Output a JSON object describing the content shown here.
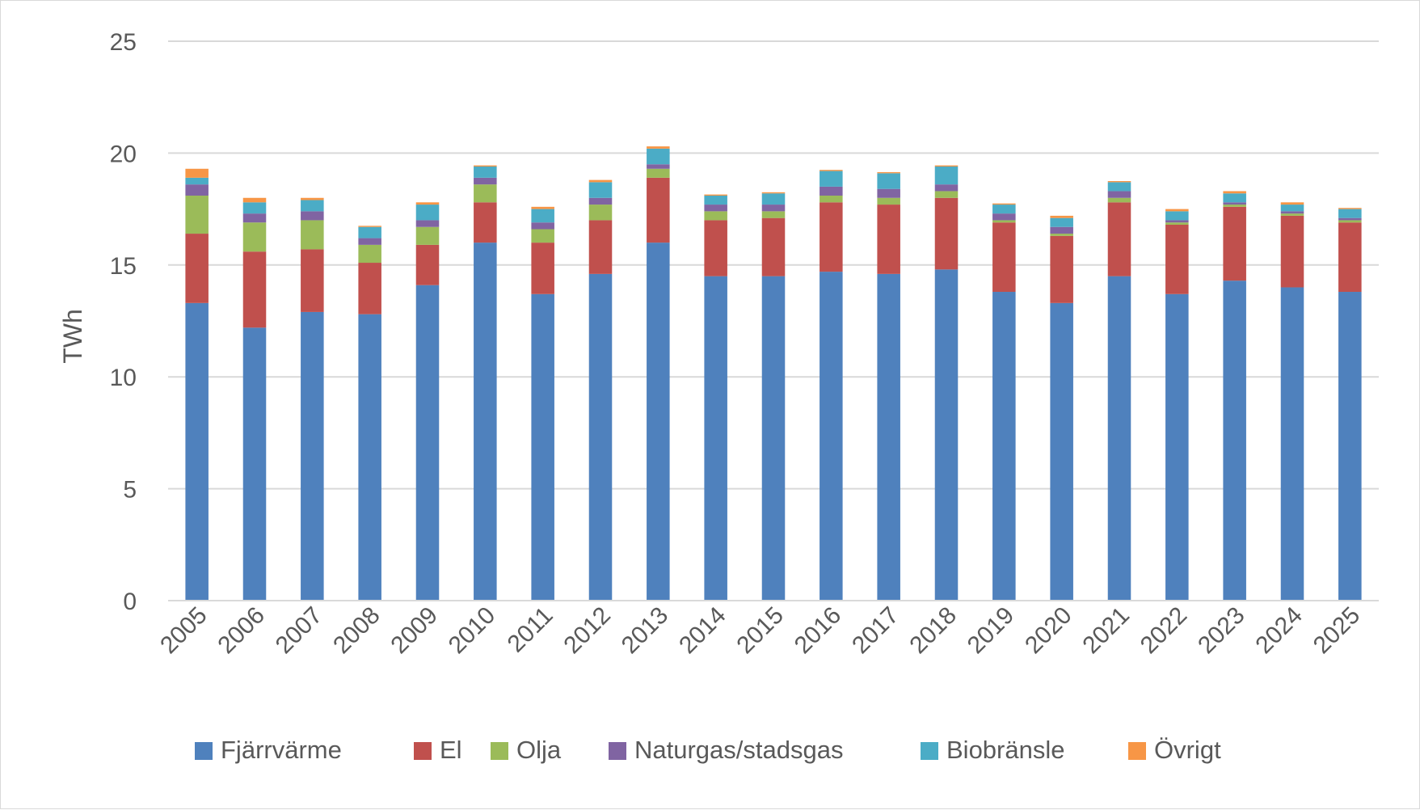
{
  "chart_data": {
    "type": "bar",
    "stacked": true,
    "title": "",
    "xlabel": "",
    "ylabel": "TWh",
    "ylim": [
      0,
      25
    ],
    "yticks": [
      0,
      5,
      10,
      15,
      20,
      25
    ],
    "grid": true,
    "legend_position": "bottom",
    "categories": [
      "2005",
      "2006",
      "2007",
      "2008",
      "2009",
      "2010",
      "2011",
      "2012",
      "2013",
      "2014",
      "2015",
      "2016",
      "2017",
      "2018",
      "2019",
      "2020",
      "2021",
      "2022",
      "2023",
      "2024",
      "2025"
    ],
    "series": [
      {
        "name": "Fjärrvärme",
        "color": "#4f81bd",
        "values": [
          13.3,
          12.2,
          12.9,
          12.8,
          14.1,
          16.0,
          13.7,
          14.6,
          16.0,
          14.5,
          14.5,
          14.7,
          14.6,
          14.8,
          13.8,
          13.3,
          14.5,
          13.7,
          14.3,
          14.0,
          13.8
        ]
      },
      {
        "name": "El",
        "color": "#c0504d",
        "values": [
          3.1,
          3.4,
          2.8,
          2.3,
          1.8,
          1.8,
          2.3,
          2.4,
          2.9,
          2.5,
          2.6,
          3.1,
          3.1,
          3.2,
          3.1,
          3.0,
          3.3,
          3.1,
          3.3,
          3.2,
          3.1
        ]
      },
      {
        "name": "Olja",
        "color": "#9bbb59",
        "values": [
          1.7,
          1.3,
          1.3,
          0.8,
          0.8,
          0.8,
          0.6,
          0.7,
          0.4,
          0.4,
          0.3,
          0.3,
          0.3,
          0.3,
          0.1,
          0.1,
          0.2,
          0.1,
          0.1,
          0.1,
          0.1
        ]
      },
      {
        "name": "Naturgas/stadsgas",
        "color": "#8064a2",
        "values": [
          0.5,
          0.4,
          0.4,
          0.3,
          0.3,
          0.3,
          0.3,
          0.3,
          0.2,
          0.3,
          0.3,
          0.4,
          0.4,
          0.3,
          0.3,
          0.3,
          0.3,
          0.1,
          0.1,
          0.1,
          0.1
        ]
      },
      {
        "name": "Biobränsle",
        "color": "#4bacc6",
        "values": [
          0.3,
          0.5,
          0.5,
          0.5,
          0.7,
          0.5,
          0.6,
          0.7,
          0.7,
          0.4,
          0.5,
          0.7,
          0.7,
          0.8,
          0.4,
          0.4,
          0.4,
          0.4,
          0.4,
          0.3,
          0.4
        ]
      },
      {
        "name": "Övrigt",
        "color": "#f79646",
        "values": [
          0.4,
          0.2,
          0.1,
          0.05,
          0.1,
          0.05,
          0.1,
          0.1,
          0.1,
          0.05,
          0.05,
          0.05,
          0.05,
          0.05,
          0.05,
          0.1,
          0.05,
          0.1,
          0.1,
          0.1,
          0.05
        ]
      }
    ]
  }
}
